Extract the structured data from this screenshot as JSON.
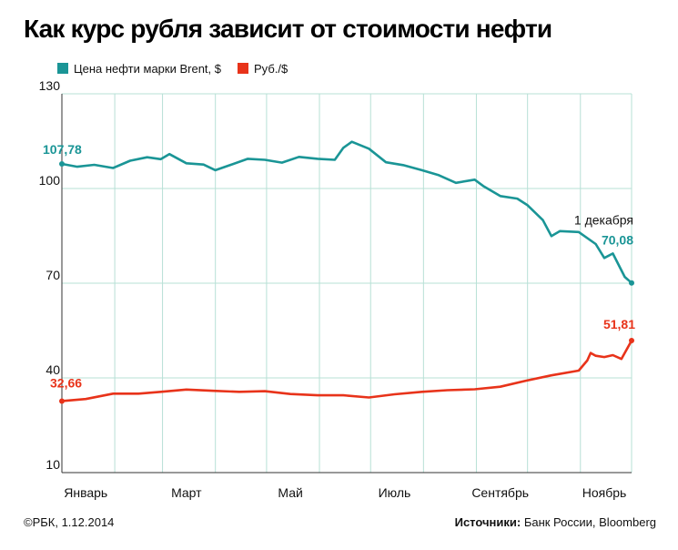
{
  "title": "Как курс рубля зависит от стоимости нефти",
  "legend": {
    "brent_label": "Цена нефти марки Brent, $",
    "rub_label": "Руб./$"
  },
  "footer": {
    "copyright": "©РБК, 1.12.2014",
    "sources_label": "Источники:",
    "sources_value": " Банк России, Bloomberg"
  },
  "colors": {
    "brent": "#1a9596",
    "rub": "#e8331a",
    "grid": "#b7e0d6",
    "axis": "#333333"
  },
  "annotations": {
    "date_label": "1 декабря",
    "brent_start": "107,78",
    "brent_end": "70,08",
    "rub_start": "32,66",
    "rub_end": "51,81"
  },
  "chart_data": {
    "type": "line",
    "title": "Как курс рубля зависит от стоимости нефти",
    "xlabel": "",
    "ylabel": "",
    "ylim": [
      10,
      130
    ],
    "xlim": [
      "2014-01-01",
      "2014-12-01"
    ],
    "y_ticks": [
      "130",
      "100",
      "70",
      "40",
      "10"
    ],
    "y_tick_values": [
      130,
      100,
      70,
      40,
      10
    ],
    "x_tick_labels": [
      "Январь",
      "Март",
      "Май",
      "Июль",
      "Сентябрь",
      "Ноябрь"
    ],
    "x_tick_dates": [
      "2014-01-15",
      "2014-03-15",
      "2014-05-15",
      "2014-07-15",
      "2014-09-15",
      "2014-11-15"
    ],
    "grid": true,
    "legend_position": "top-left",
    "series": [
      {
        "name": "Цена нефти марки Brent, $",
        "color": "#1a9596",
        "points": [
          [
            "2014-01-01",
            107.78
          ],
          [
            "2014-01-10",
            106.9
          ],
          [
            "2014-01-20",
            107.5
          ],
          [
            "2014-01-31",
            106.5
          ],
          [
            "2014-02-10",
            108.8
          ],
          [
            "2014-02-20",
            109.9
          ],
          [
            "2014-02-28",
            109.3
          ],
          [
            "2014-03-05",
            110.9
          ],
          [
            "2014-03-15",
            108.0
          ],
          [
            "2014-03-25",
            107.6
          ],
          [
            "2014-04-01",
            105.8
          ],
          [
            "2014-04-10",
            107.5
          ],
          [
            "2014-04-20",
            109.4
          ],
          [
            "2014-04-30",
            109.1
          ],
          [
            "2014-05-10",
            108.2
          ],
          [
            "2014-05-20",
            110.0
          ],
          [
            "2014-05-31",
            109.4
          ],
          [
            "2014-06-10",
            109.1
          ],
          [
            "2014-06-15",
            112.9
          ],
          [
            "2014-06-20",
            114.8
          ],
          [
            "2014-06-30",
            112.6
          ],
          [
            "2014-07-10",
            108.3
          ],
          [
            "2014-07-20",
            107.4
          ],
          [
            "2014-07-31",
            105.8
          ],
          [
            "2014-08-10",
            104.2
          ],
          [
            "2014-08-20",
            101.8
          ],
          [
            "2014-08-31",
            102.8
          ],
          [
            "2014-09-05",
            100.8
          ],
          [
            "2014-09-15",
            97.6
          ],
          [
            "2014-09-25",
            96.8
          ],
          [
            "2014-10-01",
            94.7
          ],
          [
            "2014-10-10",
            90.0
          ],
          [
            "2014-10-15",
            84.9
          ],
          [
            "2014-10-20",
            86.5
          ],
          [
            "2014-10-31",
            86.2
          ],
          [
            "2014-11-10",
            82.4
          ],
          [
            "2014-11-15",
            78.0
          ],
          [
            "2014-11-20",
            79.4
          ],
          [
            "2014-11-27",
            72.0
          ],
          [
            "2014-12-01",
            70.08
          ]
        ]
      },
      {
        "name": "Руб./$",
        "color": "#e8331a",
        "points": [
          [
            "2014-01-01",
            32.66
          ],
          [
            "2014-01-15",
            33.3
          ],
          [
            "2014-01-31",
            35.0
          ],
          [
            "2014-02-15",
            35.0
          ],
          [
            "2014-02-28",
            35.6
          ],
          [
            "2014-03-15",
            36.3
          ],
          [
            "2014-03-31",
            35.9
          ],
          [
            "2014-04-15",
            35.6
          ],
          [
            "2014-04-30",
            35.8
          ],
          [
            "2014-05-15",
            34.9
          ],
          [
            "2014-05-31",
            34.5
          ],
          [
            "2014-06-15",
            34.5
          ],
          [
            "2014-06-30",
            33.8
          ],
          [
            "2014-07-15",
            34.8
          ],
          [
            "2014-07-31",
            35.6
          ],
          [
            "2014-08-15",
            36.1
          ],
          [
            "2014-08-31",
            36.4
          ],
          [
            "2014-09-15",
            37.2
          ],
          [
            "2014-09-30",
            39.1
          ],
          [
            "2014-10-15",
            40.8
          ],
          [
            "2014-10-31",
            42.3
          ],
          [
            "2014-11-05",
            45.5
          ],
          [
            "2014-11-07",
            47.9
          ],
          [
            "2014-11-10",
            47.0
          ],
          [
            "2014-11-15",
            46.6
          ],
          [
            "2014-11-20",
            47.2
          ],
          [
            "2014-11-25",
            46.0
          ],
          [
            "2014-12-01",
            51.81
          ]
        ]
      }
    ]
  }
}
